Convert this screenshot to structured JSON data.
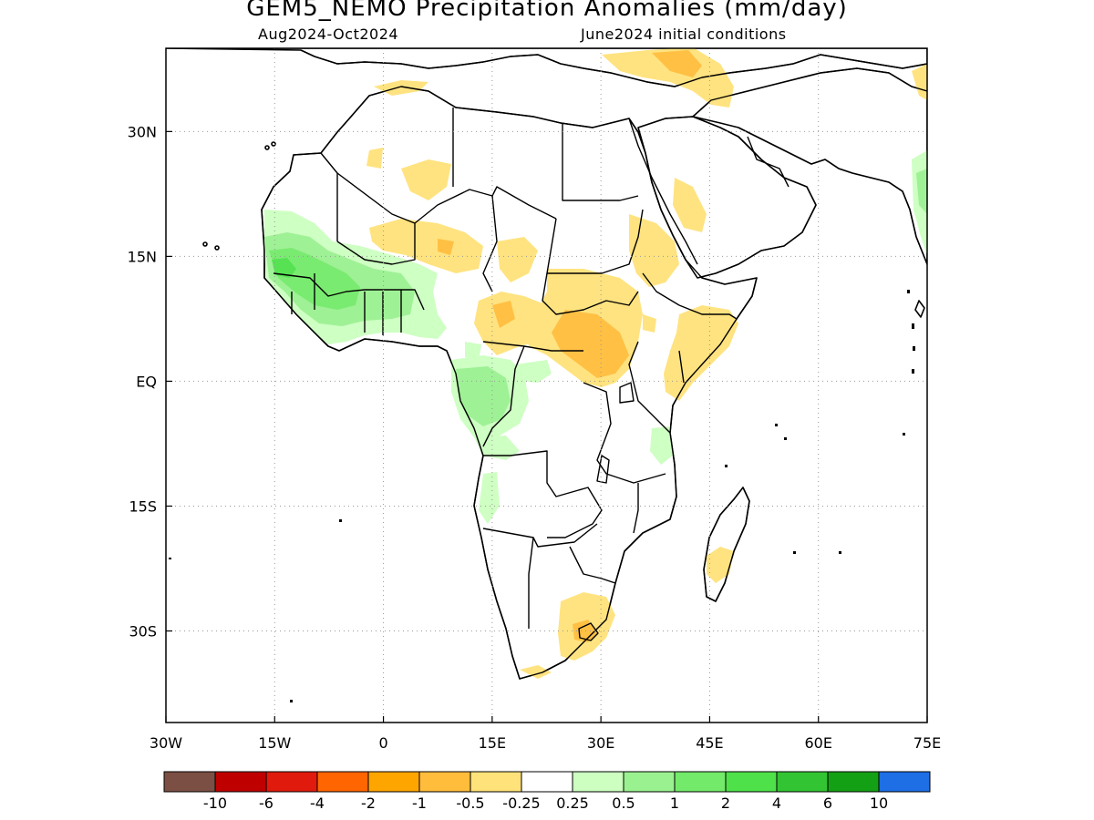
{
  "title": "GEM5_NEMO Precipitation Anomalies (mm/day)",
  "subtitle_left": "Aug2024-Oct2024",
  "subtitle_right": "June2024 initial conditions",
  "map": {
    "lon_range": [
      -30,
      75
    ],
    "lat_range": [
      -41,
      40
    ],
    "x_ticks": [
      {
        "value": -30,
        "label": "30W"
      },
      {
        "value": -15,
        "label": "15W"
      },
      {
        "value": 0,
        "label": "0"
      },
      {
        "value": 15,
        "label": "15E"
      },
      {
        "value": 30,
        "label": "30E"
      },
      {
        "value": 45,
        "label": "45E"
      },
      {
        "value": 60,
        "label": "60E"
      },
      {
        "value": 75,
        "label": "75E"
      }
    ],
    "y_ticks": [
      {
        "value": 30,
        "label": "30N"
      },
      {
        "value": 15,
        "label": "15N"
      },
      {
        "value": 0,
        "label": "EQ"
      },
      {
        "value": -15,
        "label": "15S"
      },
      {
        "value": -30,
        "label": "30S"
      }
    ],
    "grid": "dotted"
  },
  "colorbar": {
    "colors": [
      "#7b4f43",
      "#bf0000",
      "#e01b0e",
      "#ff6500",
      "#ffa500",
      "#ffbd3b",
      "#ffe27a",
      "#ffffff",
      "#ccffc0",
      "#9af190",
      "#73ea6a",
      "#4ee14a",
      "#32c432",
      "#14a014",
      "#1e6ee6"
    ],
    "labels": [
      "-10",
      "-6",
      "-4",
      "-2",
      "-1",
      "-0.5",
      "-0.25",
      "0.25",
      "0.5",
      "1",
      "2",
      "4",
      "6",
      "10"
    ]
  },
  "colors": {
    "dry_light": "#ffe27a",
    "dry_medium": "#ffbd3b",
    "wet_light": "#ccffc0",
    "wet_medium": "#9af190",
    "wet_strong": "#73ea6a",
    "wet_heavy": "#4ee14a"
  },
  "anomaly_regions": [
    {
      "name": "west-africa-wet",
      "category": "0.5 to 1"
    },
    {
      "name": "guinea-coast-wet",
      "category": "1 to 2"
    },
    {
      "name": "sahel-dry",
      "category": "-0.5 to -0.25"
    },
    {
      "name": "south-sudan-dry",
      "category": "-1 to -0.5"
    },
    {
      "name": "congo-wet",
      "category": "0.5 to 1"
    },
    {
      "name": "east-africa-dry",
      "category": "-0.5 to -0.25"
    },
    {
      "name": "southern-africa-dry",
      "category": "-0.5 to -0.25"
    },
    {
      "name": "madagascar-dry",
      "category": "-0.5 to -0.25"
    },
    {
      "name": "eastern-mediterranean-dry",
      "category": "-0.5 to -0.25"
    },
    {
      "name": "india-wet",
      "category": "0.25 to 0.5"
    }
  ]
}
